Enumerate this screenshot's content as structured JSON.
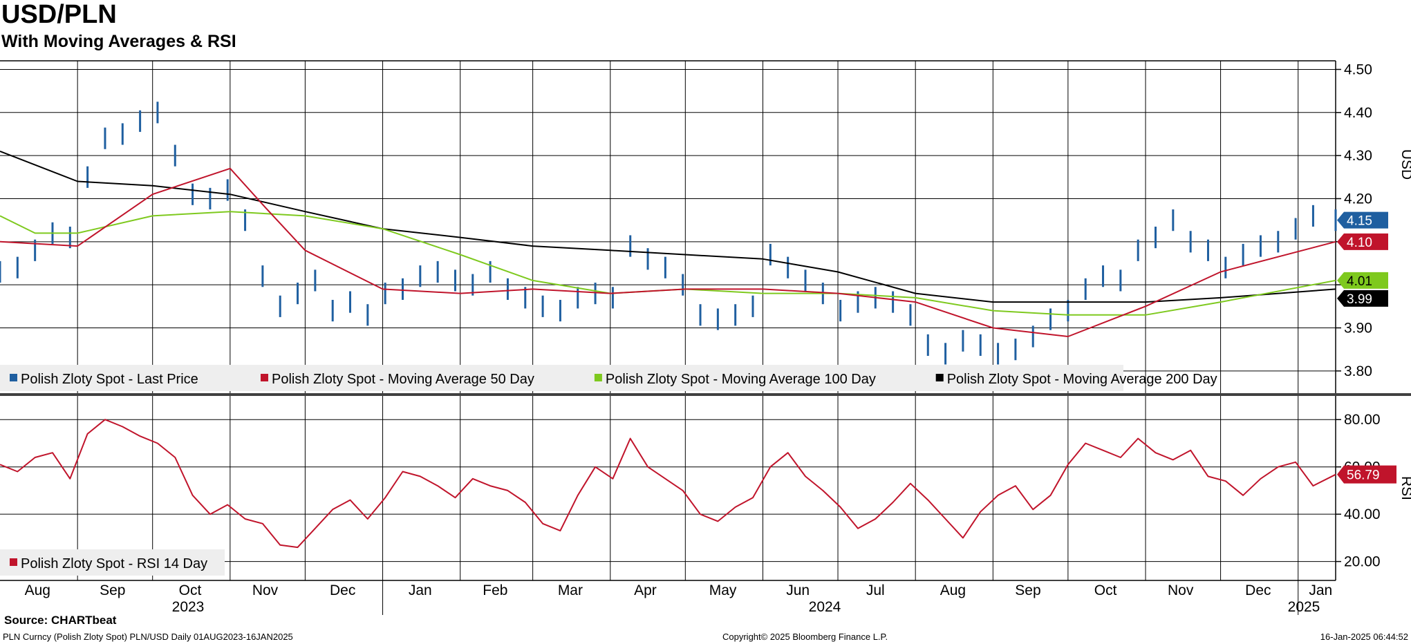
{
  "header": {
    "title": "USD/PLN",
    "subtitle": "With Moving Averages & RSI"
  },
  "footer": {
    "source": "Source: CHARTbeat",
    "ticker": "PLN Curncy (Polish Zloty Spot) PLN/USD  Daily 01AUG2023-16JAN2025",
    "copyright": "Copyright© 2025 Bloomberg Finance L.P.",
    "timestamp": "16-Jan-2025 06:44:52"
  },
  "colors": {
    "price": "#1f5fa0",
    "ma50": "#c0142b",
    "ma100": "#7ec91e",
    "ma200": "#000000",
    "rsi": "#c0142b"
  },
  "chart_data": [
    {
      "type": "line",
      "panel": "price",
      "xlim": [
        "2023-08-01",
        "2025-01-16"
      ],
      "ylim": [
        3.75,
        4.52
      ],
      "yticks": [
        3.8,
        3.9,
        4.0,
        4.1,
        4.2,
        4.3,
        4.4,
        4.5
      ],
      "ytick_labels": [
        "3.80",
        "3.90",
        "",
        "",
        "4.20",
        "4.30",
        "4.40",
        "4.50"
      ],
      "ylabel": "USD",
      "grid": true,
      "legend_position": "bottom-left",
      "series": [
        {
          "name": "Polish Zloty Spot - Last Price",
          "style": "bar",
          "x": [
            "2023-08-01",
            "2023-08-08",
            "2023-08-15",
            "2023-08-22",
            "2023-08-29",
            "2023-09-05",
            "2023-09-12",
            "2023-09-19",
            "2023-09-26",
            "2023-10-03",
            "2023-10-10",
            "2023-10-17",
            "2023-10-24",
            "2023-10-31",
            "2023-11-07",
            "2023-11-14",
            "2023-11-21",
            "2023-11-28",
            "2023-12-05",
            "2023-12-12",
            "2023-12-19",
            "2023-12-26",
            "2024-01-02",
            "2024-01-09",
            "2024-01-16",
            "2024-01-23",
            "2024-01-30",
            "2024-02-06",
            "2024-02-13",
            "2024-02-20",
            "2024-02-27",
            "2024-03-05",
            "2024-03-12",
            "2024-03-19",
            "2024-03-26",
            "2024-04-02",
            "2024-04-09",
            "2024-04-16",
            "2024-04-23",
            "2024-04-30",
            "2024-05-07",
            "2024-05-14",
            "2024-05-21",
            "2024-05-28",
            "2024-06-04",
            "2024-06-11",
            "2024-06-18",
            "2024-06-25",
            "2024-07-02",
            "2024-07-09",
            "2024-07-16",
            "2024-07-23",
            "2024-07-30",
            "2024-08-06",
            "2024-08-13",
            "2024-08-20",
            "2024-08-27",
            "2024-09-03",
            "2024-09-10",
            "2024-09-17",
            "2024-09-24",
            "2024-10-01",
            "2024-10-08",
            "2024-10-15",
            "2024-10-22",
            "2024-10-29",
            "2024-11-05",
            "2024-11-12",
            "2024-11-19",
            "2024-11-26",
            "2024-12-03",
            "2024-12-10",
            "2024-12-17",
            "2024-12-24",
            "2024-12-31",
            "2025-01-07",
            "2025-01-16"
          ],
          "values": [
            4.03,
            4.04,
            4.08,
            4.12,
            4.11,
            4.25,
            4.34,
            4.35,
            4.38,
            4.4,
            4.3,
            4.21,
            4.2,
            4.22,
            4.15,
            4.02,
            3.95,
            3.98,
            4.01,
            3.94,
            3.96,
            3.93,
            3.98,
            3.99,
            4.02,
            4.03,
            4.01,
            4.0,
            4.03,
            3.99,
            3.97,
            3.95,
            3.94,
            3.97,
            3.98,
            3.97,
            4.09,
            4.06,
            4.04,
            4.0,
            3.93,
            3.92,
            3.93,
            3.95,
            4.07,
            4.04,
            4.01,
            3.98,
            3.94,
            3.96,
            3.97,
            3.96,
            3.93,
            3.86,
            3.84,
            3.87,
            3.86,
            3.84,
            3.85,
            3.88,
            3.92,
            3.94,
            3.99,
            4.02,
            4.01,
            4.08,
            4.11,
            4.15,
            4.1,
            4.08,
            4.04,
            4.07,
            4.09,
            4.1,
            4.13,
            4.16,
            4.15
          ]
        },
        {
          "name": "Polish Zloty Spot - Moving Average 50 Day",
          "style": "line",
          "x": [
            "2023-08-01",
            "2023-09-01",
            "2023-10-01",
            "2023-11-01",
            "2023-11-15",
            "2023-12-01",
            "2024-01-01",
            "2024-02-01",
            "2024-03-01",
            "2024-04-01",
            "2024-05-01",
            "2024-06-01",
            "2024-07-01",
            "2024-08-01",
            "2024-09-01",
            "2024-10-01",
            "2024-11-01",
            "2024-12-01",
            "2025-01-16"
          ],
          "values": [
            4.1,
            4.09,
            4.21,
            4.27,
            4.18,
            4.08,
            3.99,
            3.98,
            3.99,
            3.98,
            3.99,
            3.99,
            3.98,
            3.96,
            3.9,
            3.88,
            3.95,
            4.03,
            4.1
          ]
        },
        {
          "name": "Polish Zloty Spot - Moving Average 100 Day",
          "style": "line",
          "x": [
            "2023-08-01",
            "2023-08-15",
            "2023-09-01",
            "2023-10-01",
            "2023-11-01",
            "2023-12-01",
            "2024-01-01",
            "2024-02-01",
            "2024-03-01",
            "2024-04-01",
            "2024-05-01",
            "2024-06-01",
            "2024-07-01",
            "2024-08-01",
            "2024-09-01",
            "2024-10-01",
            "2024-11-01",
            "2024-12-01",
            "2025-01-16"
          ],
          "values": [
            4.16,
            4.12,
            4.12,
            4.16,
            4.17,
            4.16,
            4.13,
            4.07,
            4.01,
            3.98,
            3.99,
            3.98,
            3.98,
            3.97,
            3.94,
            3.93,
            3.93,
            3.96,
            4.01
          ]
        },
        {
          "name": "Polish Zloty Spot - Moving Average 200 Day",
          "style": "line",
          "x": [
            "2023-08-01",
            "2023-09-01",
            "2023-10-01",
            "2023-11-01",
            "2023-12-01",
            "2024-01-01",
            "2024-02-01",
            "2024-03-01",
            "2024-04-01",
            "2024-05-01",
            "2024-06-01",
            "2024-07-01",
            "2024-08-01",
            "2024-09-01",
            "2024-10-01",
            "2024-11-01",
            "2024-12-01",
            "2025-01-16"
          ],
          "values": [
            4.31,
            4.24,
            4.23,
            4.21,
            4.17,
            4.13,
            4.11,
            4.09,
            4.08,
            4.07,
            4.06,
            4.03,
            3.98,
            3.96,
            3.96,
            3.96,
            3.97,
            3.99
          ]
        }
      ],
      "last_values": [
        {
          "label": "4.15",
          "series": "price"
        },
        {
          "label": "4.10",
          "series": "ma50"
        },
        {
          "label": "4.01",
          "series": "ma100"
        },
        {
          "label": "3.99",
          "series": "ma200"
        }
      ]
    },
    {
      "type": "line",
      "panel": "rsi",
      "xlim": [
        "2023-08-01",
        "2025-01-16"
      ],
      "ylim": [
        12,
        90
      ],
      "yticks": [
        20,
        40,
        60,
        80
      ],
      "ytick_labels": [
        "20.00",
        "40.00",
        "60.00",
        "80.00"
      ],
      "ylabel": "RSI",
      "grid": true,
      "legend_position": "bottom-left",
      "series": [
        {
          "name": "Polish Zloty Spot - RSI 14 Day",
          "x": [
            "2023-08-01",
            "2023-08-08",
            "2023-08-15",
            "2023-08-22",
            "2023-08-29",
            "2023-09-05",
            "2023-09-12",
            "2023-09-19",
            "2023-09-26",
            "2023-10-03",
            "2023-10-10",
            "2023-10-17",
            "2023-10-24",
            "2023-10-31",
            "2023-11-07",
            "2023-11-14",
            "2023-11-21",
            "2023-11-28",
            "2023-12-05",
            "2023-12-12",
            "2023-12-19",
            "2023-12-26",
            "2024-01-02",
            "2024-01-09",
            "2024-01-16",
            "2024-01-23",
            "2024-01-30",
            "2024-02-06",
            "2024-02-13",
            "2024-02-20",
            "2024-02-27",
            "2024-03-05",
            "2024-03-12",
            "2024-03-19",
            "2024-03-26",
            "2024-04-02",
            "2024-04-09",
            "2024-04-16",
            "2024-04-23",
            "2024-04-30",
            "2024-05-07",
            "2024-05-14",
            "2024-05-21",
            "2024-05-28",
            "2024-06-04",
            "2024-06-11",
            "2024-06-18",
            "2024-06-25",
            "2024-07-02",
            "2024-07-09",
            "2024-07-16",
            "2024-07-23",
            "2024-07-30",
            "2024-08-06",
            "2024-08-13",
            "2024-08-20",
            "2024-08-27",
            "2024-09-03",
            "2024-09-10",
            "2024-09-17",
            "2024-09-24",
            "2024-10-01",
            "2024-10-08",
            "2024-10-15",
            "2024-10-22",
            "2024-10-29",
            "2024-11-05",
            "2024-11-12",
            "2024-11-19",
            "2024-11-26",
            "2024-12-03",
            "2024-12-10",
            "2024-12-17",
            "2024-12-24",
            "2024-12-31",
            "2025-01-07",
            "2025-01-16"
          ],
          "values": [
            61,
            58,
            64,
            66,
            55,
            74,
            80,
            77,
            73,
            70,
            64,
            48,
            40,
            44,
            38,
            36,
            27,
            26,
            34,
            42,
            46,
            38,
            47,
            58,
            56,
            52,
            47,
            55,
            52,
            50,
            45,
            36,
            33,
            48,
            60,
            55,
            72,
            60,
            55,
            50,
            40,
            37,
            43,
            47,
            60,
            66,
            56,
            50,
            43,
            34,
            38,
            45,
            53,
            46,
            38,
            30,
            41,
            48,
            52,
            42,
            48,
            61,
            70,
            67,
            64,
            72,
            66,
            63,
            67,
            56,
            54,
            48,
            55,
            60,
            62,
            52,
            56.79
          ]
        }
      ],
      "last_values": [
        {
          "label": "56.79",
          "series": "rsi"
        }
      ]
    }
  ],
  "axis": {
    "months": [
      "Aug",
      "Sep",
      "Oct",
      "Nov",
      "Dec",
      "Jan",
      "Feb",
      "Mar",
      "Apr",
      "May",
      "Jun",
      "Jul",
      "Aug",
      "Sep",
      "Oct",
      "Nov",
      "Dec",
      "Jan"
    ],
    "years": [
      "2023",
      "2024",
      "2025"
    ]
  },
  "legend": {
    "price": [
      {
        "label": "Polish Zloty Spot - Last Price",
        "color": "#1f5fa0"
      },
      {
        "label": "Polish Zloty Spot - Moving Average 50 Day",
        "color": "#c0142b"
      },
      {
        "label": "Polish Zloty Spot - Moving Average 100 Day",
        "color": "#7ec91e"
      },
      {
        "label": "Polish Zloty Spot - Moving Average 200 Day",
        "color": "#000000"
      }
    ],
    "rsi": [
      {
        "label": "Polish Zloty Spot - RSI 14 Day",
        "color": "#c0142b"
      }
    ]
  }
}
